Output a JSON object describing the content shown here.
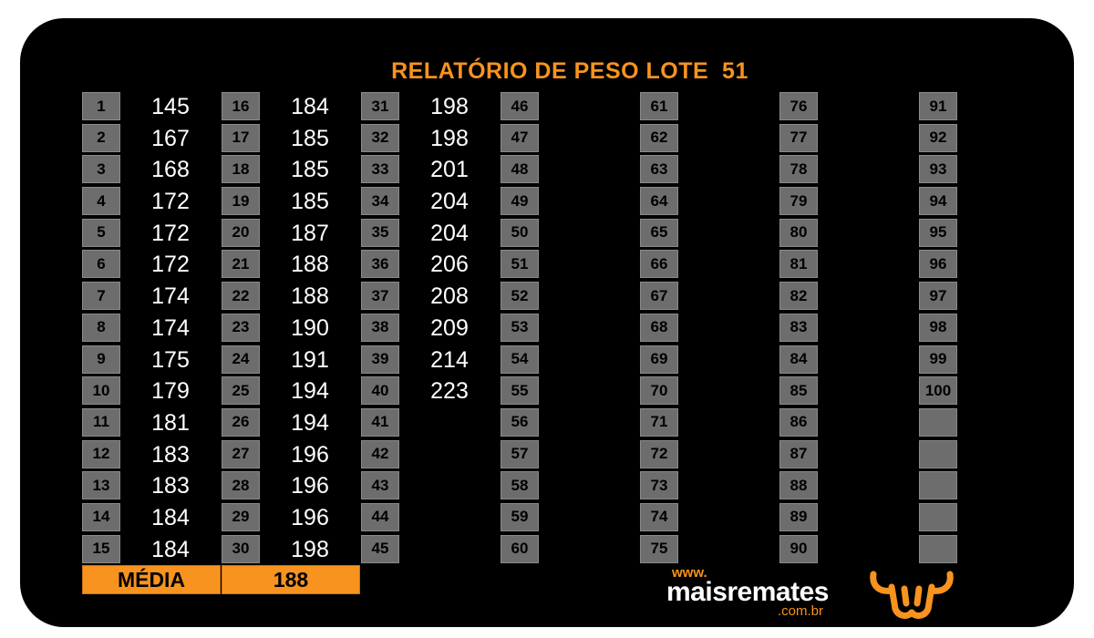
{
  "title": "RELATÓRIO DE PESO LOTE  51",
  "columns": [
    {
      "numbers": [
        "1",
        "2",
        "3",
        "4",
        "5",
        "6",
        "7",
        "8",
        "9",
        "10",
        "11",
        "12",
        "13",
        "14",
        "15"
      ],
      "weights": [
        "145",
        "167",
        "168",
        "172",
        "172",
        "172",
        "174",
        "174",
        "175",
        "179",
        "181",
        "183",
        "183",
        "184",
        "184"
      ]
    },
    {
      "numbers": [
        "16",
        "17",
        "18",
        "19",
        "20",
        "21",
        "22",
        "23",
        "24",
        "25",
        "26",
        "27",
        "28",
        "29",
        "30"
      ],
      "weights": [
        "184",
        "185",
        "185",
        "185",
        "187",
        "188",
        "188",
        "190",
        "191",
        "194",
        "194",
        "196",
        "196",
        "196",
        "198"
      ]
    },
    {
      "numbers": [
        "31",
        "32",
        "33",
        "34",
        "35",
        "36",
        "37",
        "38",
        "39",
        "40",
        "41",
        "42",
        "43",
        "44",
        "45"
      ],
      "weights": [
        "198",
        "198",
        "201",
        "204",
        "204",
        "206",
        "208",
        "209",
        "214",
        "223",
        "",
        "",
        "",
        "",
        ""
      ]
    },
    {
      "numbers": [
        "46",
        "47",
        "48",
        "49",
        "50",
        "51",
        "52",
        "53",
        "54",
        "55",
        "56",
        "57",
        "58",
        "59",
        "60"
      ],
      "weights": []
    },
    {
      "numbers": [
        "61",
        "62",
        "63",
        "64",
        "65",
        "66",
        "67",
        "68",
        "69",
        "70",
        "71",
        "72",
        "73",
        "74",
        "75"
      ],
      "weights": []
    },
    {
      "numbers": [
        "76",
        "77",
        "78",
        "79",
        "80",
        "81",
        "82",
        "83",
        "84",
        "85",
        "86",
        "87",
        "88",
        "89",
        "90"
      ],
      "weights": []
    },
    {
      "numbers": [
        "91",
        "92",
        "93",
        "94",
        "95",
        "96",
        "97",
        "98",
        "99",
        "100",
        "",
        "",
        "",
        "",
        ""
      ],
      "weights": []
    }
  ],
  "media_label": "MÉDIA",
  "media_value": "188",
  "logo": {
    "www": "www.",
    "name": "maisremates",
    "domain": ".com.br",
    "icon": "bull-head-icon"
  },
  "colors": {
    "accent": "#f7931e",
    "background": "#000000",
    "cell": "#6d6d6d"
  }
}
